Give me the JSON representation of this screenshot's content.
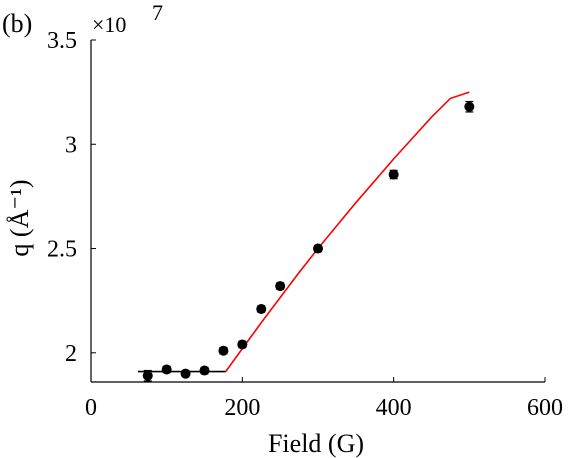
{
  "chart_data": {
    "type": "scatter",
    "panel_label": "(b)",
    "xlabel": "Field (G)",
    "ylabel": "q (Å⁻¹)",
    "exponent_label": "×10",
    "exponent_power": "7",
    "xlim": [
      0,
      600
    ],
    "ylim": [
      1.86,
      3.5
    ],
    "y_scale_factor": 10000000,
    "xticks": [
      0,
      200,
      400,
      600
    ],
    "xtick_labels": [
      "0",
      "200",
      "400",
      "600"
    ],
    "yticks": [
      2,
      2.5,
      3,
      3.5
    ],
    "ytick_labels": [
      "2",
      "2.5",
      "3",
      "3.5"
    ],
    "grid": false,
    "legend": "none",
    "series": [
      {
        "kind": "points",
        "color": "#000000",
        "x": [
          75,
          100,
          125,
          150,
          175,
          200,
          225,
          250,
          300,
          400,
          500
        ],
        "y": [
          1.89,
          1.92,
          1.9,
          1.915,
          2.01,
          2.04,
          2.21,
          2.32,
          2.5,
          2.855,
          3.18
        ],
        "err": [
          0.025,
          0.015,
          0.01,
          0.015,
          0.015,
          0.015,
          0.015,
          0.015,
          0.015,
          0.02,
          0.025
        ]
      },
      {
        "kind": "line",
        "color": "#000000",
        "x": [
          62,
          178
        ],
        "y": [
          1.91,
          1.91
        ]
      },
      {
        "kind": "line",
        "color": "#ff0000",
        "x": [
          178,
          200,
          225,
          250,
          275,
          300,
          325,
          350,
          375,
          400,
          425,
          450,
          475,
          500
        ],
        "y": [
          1.91,
          2.02,
          2.145,
          2.265,
          2.385,
          2.5,
          2.61,
          2.72,
          2.825,
          2.93,
          3.03,
          3.13,
          3.22,
          3.25
        ]
      }
    ]
  }
}
